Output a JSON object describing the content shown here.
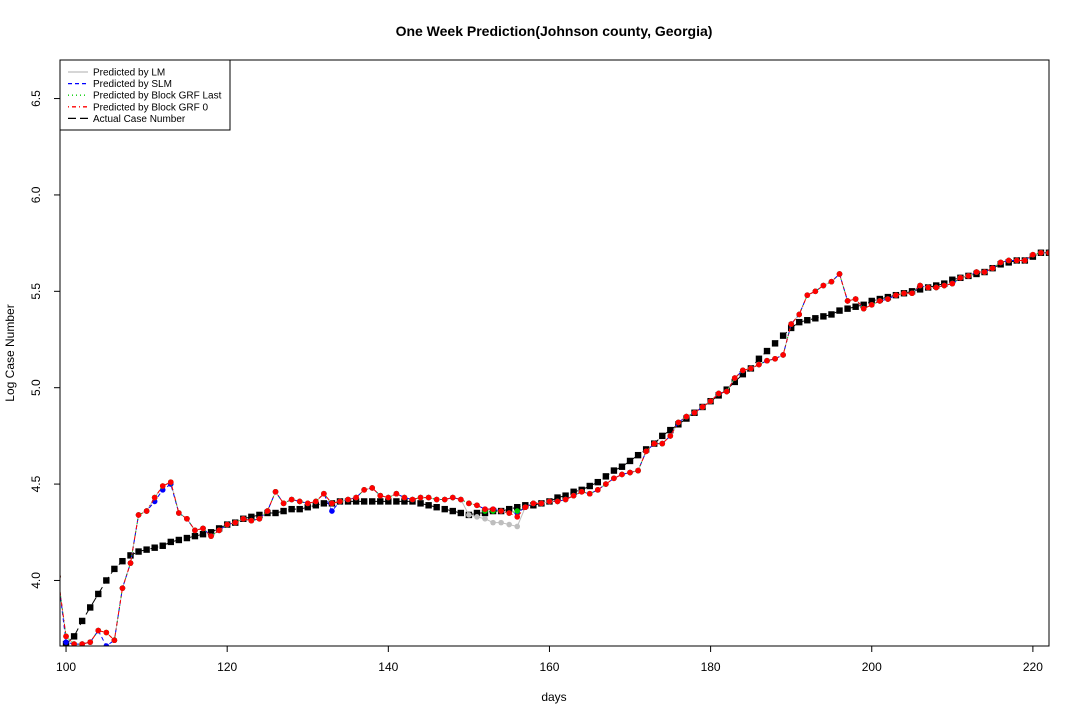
{
  "chart_data": {
    "type": "line",
    "title": "One Week Prediction(Johnson county, Georgia)",
    "x_label": "days",
    "y_label": "Log Case Number",
    "x": [
      99,
      100,
      101,
      102,
      103,
      104,
      105,
      106,
      107,
      108,
      109,
      110,
      111,
      112,
      113,
      114,
      115,
      116,
      117,
      118,
      119,
      120,
      121,
      122,
      123,
      124,
      125,
      126,
      127,
      128,
      129,
      130,
      131,
      132,
      133,
      134,
      135,
      136,
      137,
      138,
      139,
      140,
      141,
      142,
      143,
      144,
      145,
      146,
      147,
      148,
      149,
      150,
      151,
      152,
      153,
      154,
      155,
      156,
      157,
      158,
      159,
      160,
      161,
      162,
      163,
      164,
      165,
      166,
      167,
      168,
      169,
      170,
      171,
      172,
      173,
      174,
      175,
      176,
      177,
      178,
      179,
      180,
      181,
      182,
      183,
      184,
      185,
      186,
      187,
      188,
      189,
      190,
      191,
      192,
      193,
      194,
      195,
      196,
      197,
      198,
      199,
      200,
      201,
      202,
      203,
      204,
      205,
      206,
      207,
      208,
      209,
      210,
      211,
      212,
      213,
      214,
      215,
      216,
      217,
      218,
      219,
      220,
      221,
      222
    ],
    "xlim": [
      99.25,
      222.0
    ],
    "xticks": [
      100,
      120,
      140,
      160,
      180,
      200,
      220
    ],
    "ylim": [
      3.66,
      6.7
    ],
    "yticks": [
      {
        "value": 4.0,
        "label": "4.0"
      },
      4.5,
      {
        "value": 5.0,
        "label": "5.0"
      },
      5.5,
      {
        "value": 6.0,
        "label": "6.0"
      },
      6.5
    ],
    "legend": "top-left",
    "series": [
      {
        "name": "Actual Case Number",
        "color": "#000000",
        "linestyle": "longdash",
        "marker": "square",
        "values": [
          null,
          3.67,
          3.71,
          3.79,
          3.86,
          3.93,
          4.0,
          4.06,
          4.1,
          4.13,
          4.15,
          4.16,
          4.17,
          4.18,
          4.2,
          4.21,
          4.22,
          4.23,
          4.24,
          4.25,
          4.27,
          4.29,
          4.3,
          4.32,
          4.33,
          4.34,
          4.35,
          4.35,
          4.36,
          4.37,
          4.37,
          4.38,
          4.39,
          4.4,
          4.4,
          4.41,
          4.41,
          4.41,
          4.41,
          4.41,
          4.41,
          4.41,
          4.41,
          4.41,
          4.41,
          4.4,
          4.39,
          4.38,
          4.37,
          4.36,
          4.35,
          4.34,
          4.35,
          4.35,
          4.36,
          4.36,
          4.37,
          4.38,
          4.39,
          4.39,
          4.4,
          4.41,
          4.43,
          4.44,
          4.46,
          4.47,
          4.49,
          4.51,
          4.54,
          4.57,
          4.59,
          4.62,
          4.65,
          4.68,
          4.71,
          4.75,
          4.78,
          4.81,
          4.84,
          4.87,
          4.9,
          4.93,
          4.96,
          4.99,
          5.03,
          5.07,
          5.1,
          5.15,
          5.19,
          5.23,
          5.27,
          5.31,
          5.34,
          5.35,
          5.36,
          5.37,
          5.38,
          5.4,
          5.41,
          5.42,
          5.43,
          5.45,
          5.46,
          5.47,
          5.48,
          5.49,
          5.5,
          5.51,
          5.52,
          5.53,
          5.54,
          5.56,
          5.57,
          5.58,
          5.59,
          5.6,
          5.62,
          5.64,
          5.65,
          5.66,
          5.66,
          5.68,
          5.7,
          5.7
        ]
      },
      {
        "name": "Predicted by LM",
        "color": "#bebebe",
        "linestyle": "solid",
        "marker": "circle",
        "values": [
          4.02,
          3.71,
          3.67,
          3.67,
          3.68,
          3.74,
          3.73,
          3.69,
          3.96,
          4.09,
          4.34,
          4.36,
          4.43,
          4.49,
          4.51,
          4.35,
          4.32,
          4.26,
          4.27,
          4.23,
          4.26,
          4.29,
          4.3,
          4.32,
          4.31,
          4.32,
          4.36,
          4.46,
          4.4,
          4.42,
          4.41,
          4.4,
          4.41,
          4.45,
          4.4,
          4.41,
          4.42,
          4.43,
          4.47,
          4.48,
          4.44,
          4.43,
          4.45,
          4.43,
          4.42,
          4.43,
          4.43,
          4.42,
          4.42,
          4.43,
          4.42,
          4.34,
          4.33,
          4.32,
          4.3,
          4.3,
          4.29,
          4.28,
          4.38,
          4.4,
          4.4,
          4.41,
          4.41,
          4.42,
          4.44,
          4.46,
          4.45,
          4.47,
          4.5,
          4.53,
          4.55,
          4.56,
          4.57,
          4.67,
          4.71,
          4.71,
          4.75,
          4.82,
          4.85,
          4.87,
          4.9,
          4.93,
          4.97,
          4.98,
          5.05,
          5.09,
          5.1,
          5.12,
          5.14,
          5.15,
          5.17,
          5.33,
          5.38,
          5.48,
          5.5,
          5.53,
          5.55,
          5.59,
          5.45,
          5.46,
          5.41,
          5.43,
          5.45,
          5.46,
          5.48,
          5.49,
          5.49,
          5.53,
          5.52,
          5.52,
          5.53,
          5.54,
          5.57,
          5.58,
          5.6,
          5.6,
          5.62,
          5.65,
          5.66,
          5.66,
          5.66,
          5.69,
          5.7,
          5.7
        ]
      },
      {
        "name": "Predicted by SLM",
        "color": "#0000ff",
        "linestyle": "dashed",
        "marker": "circle",
        "values": [
          4.02,
          3.68,
          3.67,
          3.67,
          3.68,
          3.74,
          3.66,
          3.69,
          3.96,
          4.09,
          4.34,
          4.36,
          4.41,
          4.47,
          4.5,
          4.35,
          4.32,
          4.26,
          4.27,
          4.23,
          4.26,
          4.29,
          4.3,
          4.32,
          4.31,
          4.32,
          4.36,
          4.46,
          4.4,
          4.42,
          4.41,
          4.4,
          4.41,
          4.45,
          4.36,
          4.41,
          4.42,
          4.43,
          4.47,
          4.48,
          4.44,
          4.43,
          4.45,
          4.43,
          4.42,
          4.43,
          4.43,
          4.42,
          4.42,
          4.43,
          4.42,
          4.4,
          4.39,
          4.37,
          4.37,
          4.36,
          4.35,
          4.35,
          4.38,
          4.4,
          4.4,
          4.41,
          4.41,
          4.42,
          4.44,
          4.46,
          4.45,
          4.47,
          4.5,
          4.53,
          4.55,
          4.56,
          4.57,
          4.67,
          4.71,
          4.71,
          4.75,
          4.82,
          4.85,
          4.87,
          4.9,
          4.93,
          4.97,
          4.98,
          5.05,
          5.09,
          5.1,
          5.12,
          5.14,
          5.15,
          5.17,
          5.33,
          5.38,
          5.48,
          5.5,
          5.53,
          5.55,
          5.59,
          5.45,
          5.46,
          5.41,
          5.43,
          5.45,
          5.46,
          5.48,
          5.49,
          5.49,
          5.53,
          5.52,
          5.52,
          5.53,
          5.54,
          5.57,
          5.58,
          5.6,
          5.6,
          5.62,
          5.65,
          5.66,
          5.66,
          5.66,
          5.69,
          5.7,
          5.7
        ]
      },
      {
        "name": "Predicted by Block GRF Last",
        "color": "#00cc00",
        "linestyle": "dotted",
        "marker": "circle",
        "values": [
          4.02,
          3.71,
          3.67,
          3.67,
          3.68,
          3.74,
          3.73,
          3.69,
          3.96,
          4.09,
          4.34,
          4.36,
          4.43,
          4.49,
          4.51,
          4.35,
          4.32,
          4.26,
          4.27,
          4.23,
          4.26,
          4.29,
          4.3,
          4.32,
          4.31,
          4.32,
          4.36,
          4.46,
          4.4,
          4.42,
          4.41,
          4.4,
          4.41,
          4.45,
          4.4,
          4.41,
          4.42,
          4.43,
          4.47,
          4.48,
          4.44,
          4.43,
          4.45,
          4.43,
          4.42,
          4.43,
          4.43,
          4.42,
          4.42,
          4.43,
          4.42,
          4.4,
          4.39,
          4.36,
          4.36,
          4.36,
          4.35,
          4.36,
          4.38,
          4.4,
          4.4,
          4.41,
          4.41,
          4.42,
          4.44,
          4.46,
          4.45,
          4.47,
          4.5,
          4.53,
          4.55,
          4.56,
          4.57,
          4.67,
          4.71,
          4.71,
          4.75,
          4.82,
          4.85,
          4.87,
          4.9,
          4.93,
          4.97,
          4.98,
          5.05,
          5.09,
          5.1,
          5.12,
          5.14,
          5.15,
          5.17,
          5.33,
          5.38,
          5.48,
          5.5,
          5.53,
          5.55,
          5.59,
          5.45,
          5.46,
          5.41,
          5.43,
          5.45,
          5.46,
          5.48,
          5.49,
          5.49,
          5.53,
          5.52,
          5.52,
          5.53,
          5.54,
          5.57,
          5.58,
          5.6,
          5.6,
          5.62,
          5.65,
          5.66,
          5.66,
          5.66,
          5.69,
          5.7,
          5.7
        ]
      },
      {
        "name": "Predicted by Block GRF 0",
        "color": "#ff0000",
        "linestyle": "dotdash",
        "marker": "circle",
        "values": [
          4.02,
          3.71,
          3.67,
          3.67,
          3.68,
          3.74,
          3.73,
          3.69,
          3.96,
          4.09,
          4.34,
          4.36,
          4.43,
          4.49,
          4.51,
          4.35,
          4.32,
          4.26,
          4.27,
          4.23,
          4.26,
          4.29,
          4.3,
          4.32,
          4.31,
          4.32,
          4.36,
          4.46,
          4.4,
          4.42,
          4.41,
          4.4,
          4.41,
          4.45,
          4.4,
          4.41,
          4.42,
          4.43,
          4.47,
          4.48,
          4.44,
          4.43,
          4.45,
          4.43,
          4.42,
          4.43,
          4.43,
          4.42,
          4.42,
          4.43,
          4.42,
          4.4,
          4.39,
          4.37,
          4.37,
          4.36,
          4.35,
          4.33,
          4.38,
          4.4,
          4.4,
          4.41,
          4.41,
          4.42,
          4.44,
          4.46,
          4.45,
          4.47,
          4.5,
          4.53,
          4.55,
          4.56,
          4.57,
          4.67,
          4.71,
          4.71,
          4.75,
          4.82,
          4.85,
          4.87,
          4.9,
          4.93,
          4.97,
          4.98,
          5.05,
          5.09,
          5.1,
          5.12,
          5.14,
          5.15,
          5.17,
          5.33,
          5.38,
          5.48,
          5.5,
          5.53,
          5.55,
          5.59,
          5.45,
          5.46,
          5.41,
          5.43,
          5.45,
          5.46,
          5.48,
          5.49,
          5.49,
          5.53,
          5.52,
          5.52,
          5.53,
          5.54,
          5.57,
          5.58,
          5.6,
          5.6,
          5.62,
          5.65,
          5.66,
          5.66,
          5.66,
          5.69,
          5.7,
          5.7
        ]
      }
    ]
  }
}
